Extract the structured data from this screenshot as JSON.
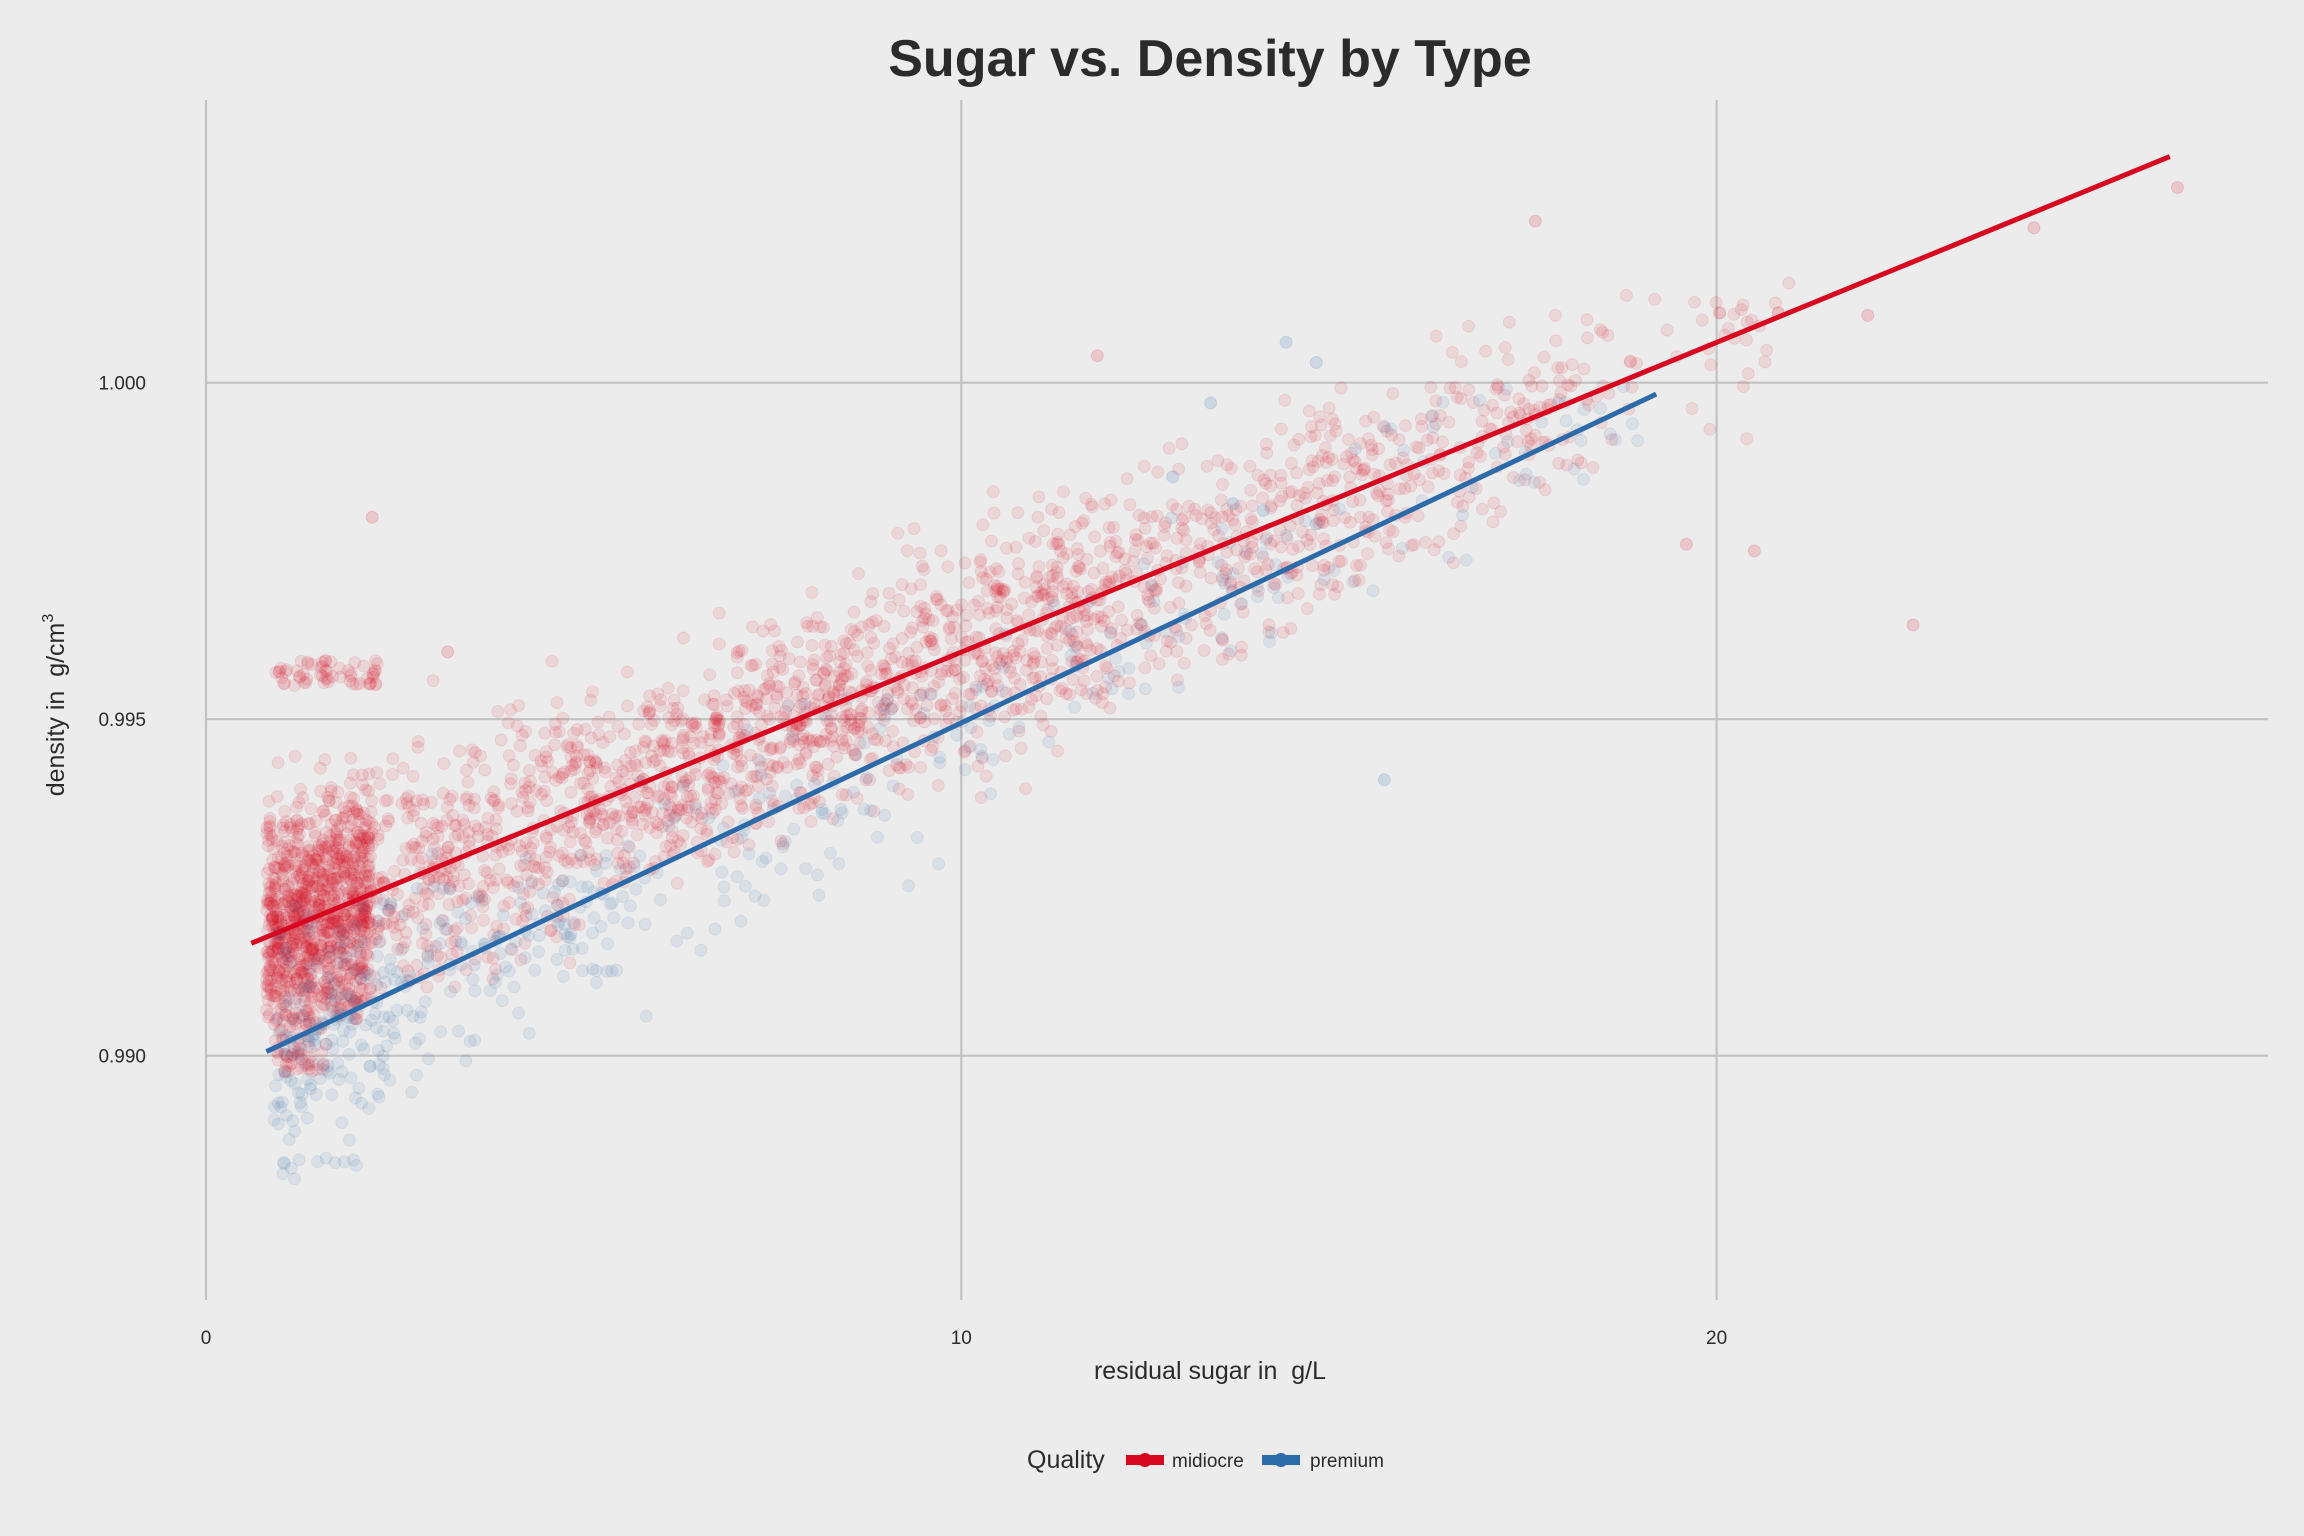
{
  "chart_data": {
    "type": "scatter",
    "title": "Sugar vs. Density by Type",
    "xlabel": "residual sugar in  g/L",
    "ylabel_main": "density in  g/cm",
    "ylabel_superscript": "3",
    "xlim": [
      0,
      27.3
    ],
    "ylim": [
      0.98637,
      1.0042
    ],
    "x_ticks": [
      0,
      10,
      20
    ],
    "x_tick_labels": [
      "0",
      "10",
      "20"
    ],
    "y_ticks": [
      0.99,
      0.995,
      1.0
    ],
    "y_tick_labels": [
      "0.990",
      "0.995",
      "1.000"
    ],
    "grid": true,
    "legend": {
      "title": "Quality",
      "placement": "bottom-center"
    },
    "point_opacity": 0.1,
    "series": [
      {
        "name": "midiocre",
        "color": "#d7081f",
        "trend_line": {
          "x": [
            0.6,
            26.0
          ],
          "y": [
            0.99167,
            1.00336
          ]
        },
        "clusters": [
          {
            "x": [
              0.8,
              2.2
            ],
            "y": [
              0.9905,
              0.9955
            ],
            "count": 1000
          },
          {
            "x": [
              0.9,
              1.6
            ],
            "y": [
              0.9875,
              0.9905
            ],
            "count": 60
          },
          {
            "x": [
              0.9,
              2.3
            ],
            "y": [
              0.9955,
              0.997
            ],
            "count": 60
          },
          {
            "x": [
              2.2,
              5.0
            ],
            "y": [
              0.991,
              0.9965
            ],
            "count": 380
          },
          {
            "x": [
              5.0,
              8.5
            ],
            "y": [
              0.9925,
              0.997
            ],
            "count": 560
          },
          {
            "x": [
              8.5,
              12.0
            ],
            "y": [
              0.9935,
              0.9985
            ],
            "count": 500
          },
          {
            "x": [
              12.0,
              15.5
            ],
            "y": [
              0.9955,
              1.0
            ],
            "count": 320
          },
          {
            "x": [
              15.5,
              18.5
            ],
            "y": [
              0.997,
              1.0012
            ],
            "count": 170
          },
          {
            "x": [
              18.5,
              21.0
            ],
            "y": [
              0.997,
              1.0015
            ],
            "count": 40
          }
        ],
        "extra_points": [
          [
            11.8,
            1.0004
          ],
          [
            17.6,
            1.0024
          ],
          [
            22.0,
            1.001
          ],
          [
            24.2,
            1.0023
          ],
          [
            26.1,
            1.0029
          ],
          [
            22.6,
            0.9964
          ],
          [
            20.5,
            0.9975
          ],
          [
            19.6,
            0.9976
          ],
          [
            2.2,
            0.998
          ],
          [
            3.2,
            0.996
          ]
        ]
      },
      {
        "name": "premium",
        "color": "#2d6aaa",
        "trend_line": {
          "x": [
            0.8,
            19.2
          ],
          "y": [
            0.99006,
            0.99983
          ]
        },
        "clusters": [
          {
            "x": [
              0.9,
              2.5
            ],
            "y": [
              0.9885,
              0.9935
            ],
            "count": 160
          },
          {
            "x": [
              1.0,
              2.0
            ],
            "y": [
              0.9871,
              0.9885
            ],
            "count": 12
          },
          {
            "x": [
              2.5,
              5.5
            ],
            "y": [
              0.989,
              0.993
            ],
            "count": 130
          },
          {
            "x": [
              5.5,
              10.5
            ],
            "y": [
              0.9905,
              0.9955
            ],
            "count": 110
          },
          {
            "x": [
              10.5,
              15.0
            ],
            "y": [
              0.993,
              0.998
            ],
            "count": 60
          },
          {
            "x": [
              15.0,
              19.0
            ],
            "y": [
              0.996,
              1.0
            ],
            "count": 40
          }
        ],
        "extra_points": [
          [
            14.3,
            1.0006
          ],
          [
            14.7,
            1.0003
          ],
          [
            15.6,
            0.9941
          ],
          [
            14.7,
            0.9979
          ],
          [
            13.6,
            0.9982
          ],
          [
            12.8,
            0.9986
          ],
          [
            13.3,
            0.9997
          ],
          [
            14.0,
            0.9981
          ]
        ]
      }
    ]
  }
}
